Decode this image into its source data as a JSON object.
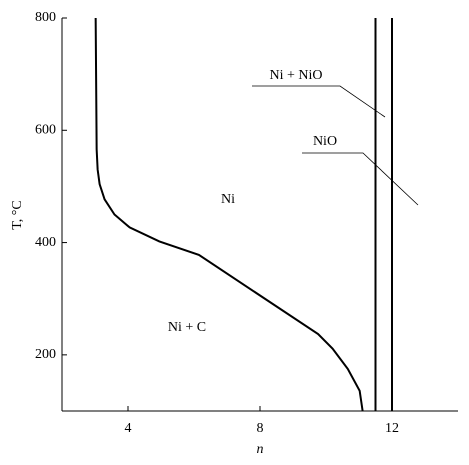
{
  "chart_data": {
    "type": "line",
    "xlabel": "n",
    "ylabel": "T, °C",
    "xlim": [
      2,
      14
    ],
    "xticks": [
      4,
      8,
      12
    ],
    "ylim": [
      100,
      800
    ],
    "yticks": [
      200,
      400,
      600,
      800
    ],
    "series": [
      {
        "color": "#000000",
        "x": [
          3.02,
          3.05,
          3.08,
          3.14,
          3.29,
          3.59,
          4.05,
          4.95,
          6.15,
          9.76,
          10.2,
          10.66,
          11.02,
          11.11
        ],
        "values": [
          800,
          566,
          530,
          504,
          477,
          450,
          427,
          402,
          378,
          237,
          211,
          175,
          136,
          100
        ]
      },
      {
        "color": "#000000",
        "x": [
          11.5,
          11.5
        ],
        "values": [
          100,
          800
        ]
      },
      {
        "color": "#000000",
        "x": [
          12,
          12
        ],
        "values": [
          100,
          800
        ]
      }
    ],
    "annotations": [
      "Ni + NiO",
      "NiO",
      "Ni",
      "Ni + C"
    ]
  }
}
